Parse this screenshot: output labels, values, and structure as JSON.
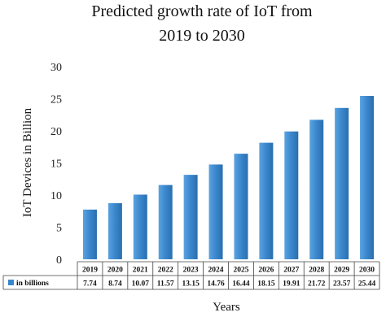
{
  "chart_data": {
    "type": "bar",
    "title_lines": [
      "Predicted growth rate of IoT from",
      "2019 to 2030"
    ],
    "xlabel": "Years",
    "ylabel": "IoT Devices in Billion",
    "ylim": [
      0,
      30
    ],
    "yticks": [
      "0",
      "5",
      "10",
      "15",
      "20",
      "25",
      "30"
    ],
    "categories": [
      "2019",
      "2020",
      "2021",
      "2022",
      "2023",
      "2024",
      "2025",
      "2026",
      "2027",
      "2028",
      "2029",
      "2030"
    ],
    "series": [
      {
        "name": "in billions",
        "values": [
          7.74,
          8.74,
          10.07,
          11.57,
          13.15,
          14.76,
          16.44,
          18.15,
          19.91,
          21.72,
          23.57,
          25.44
        ],
        "labels": [
          "7.74",
          "8.74",
          "10.07",
          "11.57",
          "13.15",
          "14.76",
          "16.44",
          "18.15",
          "19.91",
          "21.72",
          "23.57",
          "25.44"
        ]
      }
    ],
    "grid": false,
    "legend": "data-table",
    "bar_color": "#3a86cc"
  }
}
